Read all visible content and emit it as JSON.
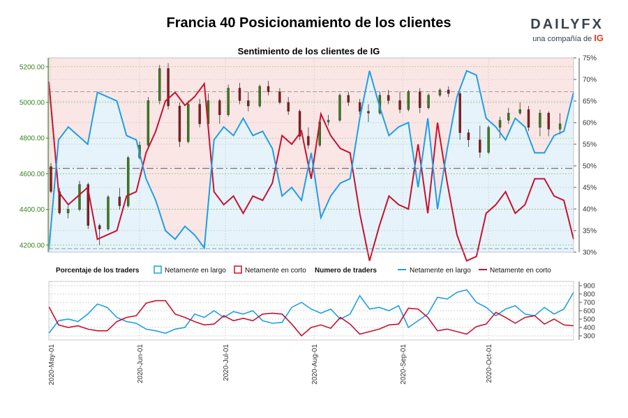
{
  "header": {
    "title": "Francia 40 Posicionamiento de los clientes",
    "subtitle": "Sentimiento de los clientes de IG",
    "brand": "DAILYFX",
    "brand_sub": "una compañía de",
    "brand_sub_mark": "IG"
  },
  "legend": {
    "pct_title": "Porcentaje de los traders",
    "pct_long": "Netamente en largo",
    "pct_short": "Netamente en corto",
    "num_title": "Numero de traders",
    "num_long": "Netamente en largo",
    "num_short": "Netamente en corto"
  },
  "colors": {
    "long": "#1f9ee5",
    "short": "#c8102e",
    "long_fill": "#e6f3fb",
    "short_fill": "#fbe6e6",
    "price_axis": "#3a7f1d"
  },
  "chart_data": [
    {
      "type": "candlestick",
      "title": "Sentimiento de los clientes de IG",
      "price_axis": {
        "ticks": [
          "4200.00",
          "4400.00",
          "4600.00",
          "4800.00",
          "5000.00",
          "5200.00"
        ],
        "ylim": [
          4160,
          5250
        ]
      },
      "pct_axis": {
        "ticks": [
          "30%",
          "35%",
          "40%",
          "45%",
          "50%",
          "55%",
          "60%",
          "65%",
          "70%",
          "75%"
        ],
        "ylim": [
          30,
          75
        ]
      },
      "x_labels": [
        "2020-May-01",
        "2020-Jun-01",
        "2020-Jul-01",
        "2020-Aug-01",
        "2020-Sep-01",
        "2020-Oct-01"
      ],
      "reference_lines": {
        "price_high": 5060,
        "price_mid": 4630,
        "price_low": 4180
      },
      "ohlc": [
        {
          "date": "2020-05-01",
          "o": 4640,
          "h": 4660,
          "l": 4490,
          "c": 4500
        },
        {
          "date": "2020-05-04",
          "o": 4500,
          "h": 4520,
          "l": 4370,
          "c": 4380
        },
        {
          "date": "2020-05-07",
          "o": 4380,
          "h": 4420,
          "l": 4350,
          "c": 4400
        },
        {
          "date": "2020-05-11",
          "o": 4400,
          "h": 4560,
          "l": 4390,
          "c": 4540
        },
        {
          "date": "2020-05-14",
          "o": 4540,
          "h": 4550,
          "l": 4290,
          "c": 4310
        },
        {
          "date": "2020-05-18",
          "o": 4310,
          "h": 4320,
          "l": 4200,
          "c": 4290
        },
        {
          "date": "2020-05-21",
          "o": 4290,
          "h": 4480,
          "l": 4280,
          "c": 4470
        },
        {
          "date": "2020-05-25",
          "o": 4470,
          "h": 4520,
          "l": 4400,
          "c": 4420
        },
        {
          "date": "2020-05-28",
          "o": 4420,
          "h": 4700,
          "l": 4410,
          "c": 4690
        },
        {
          "date": "2020-06-01",
          "o": 4690,
          "h": 4780,
          "l": 4680,
          "c": 4760
        },
        {
          "date": "2020-06-04",
          "o": 4760,
          "h": 5030,
          "l": 4750,
          "c": 5010
        },
        {
          "date": "2020-06-08",
          "o": 5010,
          "h": 5210,
          "l": 4990,
          "c": 5190
        },
        {
          "date": "2020-06-11",
          "o": 5190,
          "h": 5220,
          "l": 4960,
          "c": 4980
        },
        {
          "date": "2020-06-15",
          "o": 4980,
          "h": 5000,
          "l": 4750,
          "c": 4780
        },
        {
          "date": "2020-06-18",
          "o": 4780,
          "h": 5010,
          "l": 4770,
          "c": 4990
        },
        {
          "date": "2020-06-22",
          "o": 4990,
          "h": 5020,
          "l": 4860,
          "c": 4880
        },
        {
          "date": "2020-06-25",
          "o": 4880,
          "h": 5050,
          "l": 4850,
          "c": 5010
        },
        {
          "date": "2020-06-29",
          "o": 5010,
          "h": 5020,
          "l": 4880,
          "c": 4930
        },
        {
          "date": "2020-07-02",
          "o": 4930,
          "h": 5100,
          "l": 4920,
          "c": 5080
        },
        {
          "date": "2020-07-06",
          "o": 5080,
          "h": 5110,
          "l": 4990,
          "c": 5010
        },
        {
          "date": "2020-07-09",
          "o": 5010,
          "h": 5060,
          "l": 4950,
          "c": 4980
        },
        {
          "date": "2020-07-13",
          "o": 4980,
          "h": 5100,
          "l": 4970,
          "c": 5090
        },
        {
          "date": "2020-07-16",
          "o": 5090,
          "h": 5120,
          "l": 5040,
          "c": 5060
        },
        {
          "date": "2020-07-20",
          "o": 5060,
          "h": 5080,
          "l": 4990,
          "c": 5000
        },
        {
          "date": "2020-07-23",
          "o": 5000,
          "h": 5030,
          "l": 4930,
          "c": 4950
        },
        {
          "date": "2020-07-27",
          "o": 4950,
          "h": 4960,
          "l": 4790,
          "c": 4810
        },
        {
          "date": "2020-07-30",
          "o": 4810,
          "h": 4860,
          "l": 4740,
          "c": 4760
        },
        {
          "date": "2020-08-03",
          "o": 4760,
          "h": 4900,
          "l": 4750,
          "c": 4890
        },
        {
          "date": "2020-08-06",
          "o": 4890,
          "h": 4930,
          "l": 4870,
          "c": 4900
        },
        {
          "date": "2020-08-10",
          "o": 4900,
          "h": 5050,
          "l": 4890,
          "c": 5040
        },
        {
          "date": "2020-08-13",
          "o": 5040,
          "h": 5060,
          "l": 4980,
          "c": 5000
        },
        {
          "date": "2020-08-17",
          "o": 5000,
          "h": 5020,
          "l": 4930,
          "c": 4950
        },
        {
          "date": "2020-08-20",
          "o": 4950,
          "h": 4990,
          "l": 4890,
          "c": 4940
        },
        {
          "date": "2020-08-24",
          "o": 4940,
          "h": 5060,
          "l": 4930,
          "c": 5040
        },
        {
          "date": "2020-08-27",
          "o": 5040,
          "h": 5070,
          "l": 4990,
          "c": 5010
        },
        {
          "date": "2020-08-31",
          "o": 5010,
          "h": 5060,
          "l": 4940,
          "c": 4960
        },
        {
          "date": "2020-09-03",
          "o": 4960,
          "h": 5070,
          "l": 4950,
          "c": 5060
        },
        {
          "date": "2020-09-07",
          "o": 5060,
          "h": 5080,
          "l": 4940,
          "c": 4970
        },
        {
          "date": "2020-09-10",
          "o": 4970,
          "h": 5050,
          "l": 4960,
          "c": 5040
        },
        {
          "date": "2020-09-14",
          "o": 5040,
          "h": 5080,
          "l": 5030,
          "c": 5070
        },
        {
          "date": "2020-09-17",
          "o": 5070,
          "h": 5090,
          "l": 5030,
          "c": 5050
        },
        {
          "date": "2020-09-21",
          "o": 5050,
          "h": 5060,
          "l": 4790,
          "c": 4830
        },
        {
          "date": "2020-09-24",
          "o": 4830,
          "h": 4850,
          "l": 4750,
          "c": 4790
        },
        {
          "date": "2020-09-28",
          "o": 4790,
          "h": 4870,
          "l": 4690,
          "c": 4720
        },
        {
          "date": "2020-10-01",
          "o": 4720,
          "h": 4870,
          "l": 4710,
          "c": 4860
        },
        {
          "date": "2020-10-05",
          "o": 4860,
          "h": 4920,
          "l": 4800,
          "c": 4900
        },
        {
          "date": "2020-10-08",
          "o": 4900,
          "h": 4970,
          "l": 4880,
          "c": 4940
        },
        {
          "date": "2020-10-12",
          "o": 4940,
          "h": 5000,
          "l": 4930,
          "c": 4960
        },
        {
          "date": "2020-10-15",
          "o": 4960,
          "h": 4980,
          "l": 4840,
          "c": 4860
        },
        {
          "date": "2020-10-19",
          "o": 4860,
          "h": 4960,
          "l": 4810,
          "c": 4940
        },
        {
          "date": "2020-10-22",
          "o": 4940,
          "h": 4950,
          "l": 4810,
          "c": 4850
        },
        {
          "date": "2020-10-26",
          "o": 4850,
          "h": 4940,
          "l": 4820,
          "c": 4880
        }
      ],
      "series": [
        {
          "name": "Netamente en largo",
          "values": [
            30.5,
            56,
            59,
            57,
            55,
            67,
            66,
            65,
            57,
            56,
            47,
            42,
            35,
            33,
            36,
            34,
            31,
            56,
            59,
            57,
            61,
            57,
            58,
            54,
            43,
            45,
            42,
            53,
            38,
            43,
            46,
            47,
            61,
            72,
            64,
            57,
            59,
            60,
            45,
            61,
            40,
            54,
            66,
            72,
            71,
            61,
            59,
            56,
            61,
            59,
            53,
            53,
            57,
            58,
            67
          ]
        },
        {
          "name": "Netamente en corto",
          "values": [
            69.5,
            44,
            41,
            43,
            45,
            33,
            34,
            35,
            43,
            44,
            53,
            58,
            65,
            67,
            64,
            66,
            69,
            44,
            41,
            43,
            39,
            43,
            42,
            46,
            57,
            55,
            58,
            47,
            62,
            57,
            54,
            53,
            39,
            28,
            36,
            43,
            41,
            40,
            55,
            39,
            60,
            46,
            34,
            28,
            29,
            39,
            41,
            44,
            39,
            41,
            47,
            47,
            43,
            42,
            33
          ]
        }
      ]
    },
    {
      "type": "line",
      "title": "Numero de traders",
      "y_ticks": [
        "300",
        "400",
        "500",
        "600",
        "700",
        "800",
        "900"
      ],
      "ylim": [
        250,
        950
      ],
      "series": [
        {
          "name": "Netamente en largo",
          "values": [
            330,
            480,
            500,
            470,
            560,
            680,
            640,
            520,
            470,
            450,
            380,
            360,
            330,
            380,
            400,
            560,
            520,
            600,
            520,
            590,
            560,
            600,
            480,
            450,
            460,
            640,
            700,
            620,
            570,
            620,
            500,
            560,
            780,
            620,
            640,
            600,
            660,
            400,
            480,
            560,
            760,
            740,
            820,
            850,
            700,
            640,
            540,
            620,
            660,
            560,
            540,
            640,
            560,
            620,
            820
          ]
        },
        {
          "name": "Netamente en corto",
          "values": [
            650,
            430,
            400,
            420,
            380,
            360,
            360,
            470,
            520,
            540,
            690,
            720,
            720,
            560,
            520,
            470,
            430,
            440,
            540,
            480,
            510,
            480,
            560,
            570,
            560,
            440,
            300,
            400,
            430,
            390,
            520,
            440,
            320,
            350,
            380,
            430,
            440,
            630,
            620,
            520,
            360,
            380,
            350,
            320,
            410,
            440,
            580,
            520,
            450,
            520,
            540,
            440,
            500,
            430,
            420
          ]
        }
      ]
    }
  ]
}
